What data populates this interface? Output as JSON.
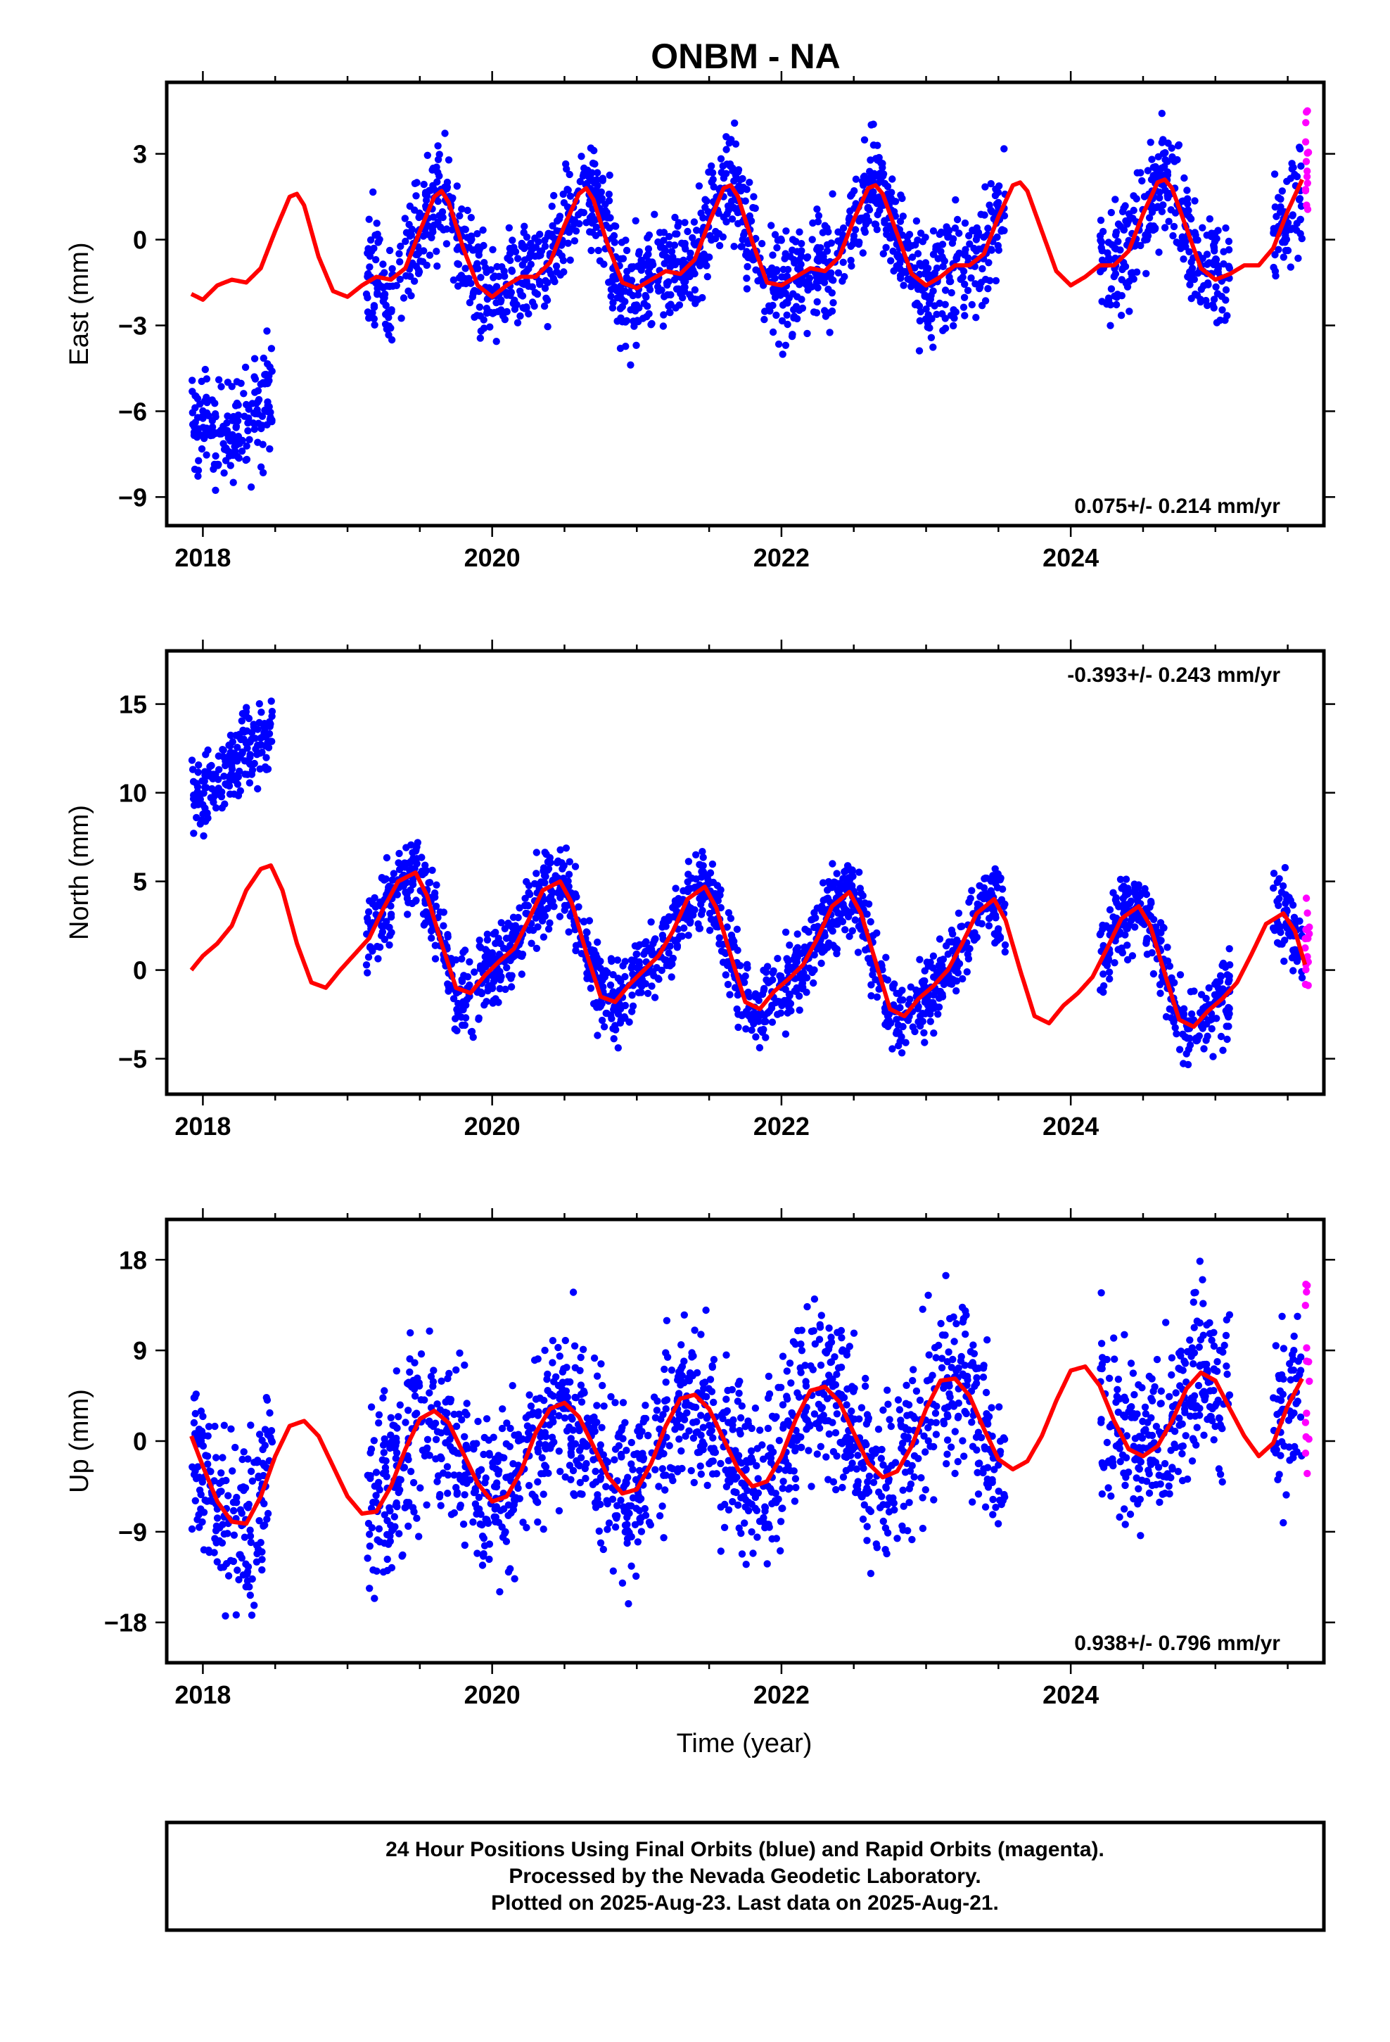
{
  "title": "ONBM - NA",
  "xlabel": "Time (year)",
  "footer": {
    "line1": "24 Hour Positions Using Final Orbits (blue) and Rapid Orbits (magenta).",
    "line2": "Processed by the Nevada Geodetic Laboratory.",
    "line3": "Plotted on 2025-Aug-23. Last data on 2025-Aug-21."
  },
  "colors": {
    "final": "#0000ff",
    "rapid": "#ff00ff",
    "model": "#ff0000",
    "frame": "#000000"
  },
  "chart_data": [
    {
      "type": "scatter",
      "ylabel": "East (mm)",
      "rate": "0.075+/- 0.214 mm/yr",
      "rate_position": "bottom-right",
      "xlim": [
        2017.75,
        2025.75
      ],
      "ylim": [
        -10,
        5.5
      ],
      "xticks": [
        2018,
        2020,
        2022,
        2024
      ],
      "yticks": [
        -9,
        -6,
        -3,
        0,
        3
      ],
      "ytick_labels": [
        "−9",
        "−6",
        "−3",
        "0",
        "3"
      ],
      "model": {
        "x": [
          2017.92,
          2018.0,
          2018.1,
          2018.2,
          2018.3,
          2018.4,
          2018.5,
          2018.6,
          2018.65,
          2018.7,
          2018.8,
          2018.9,
          2019.0,
          2019.1,
          2019.2,
          2019.3,
          2019.4,
          2019.5,
          2019.6,
          2019.65,
          2019.7,
          2019.8,
          2019.9,
          2020.0,
          2020.1,
          2020.2,
          2020.3,
          2020.4,
          2020.5,
          2020.6,
          2020.65,
          2020.7,
          2020.8,
          2020.9,
          2021.0,
          2021.1,
          2021.2,
          2021.3,
          2021.4,
          2021.5,
          2021.6,
          2021.65,
          2021.7,
          2021.8,
          2021.9,
          2022.0,
          2022.1,
          2022.2,
          2022.3,
          2022.4,
          2022.5,
          2022.6,
          2022.65,
          2022.7,
          2022.8,
          2022.9,
          2023.0,
          2023.1,
          2023.2,
          2023.3,
          2023.4,
          2023.5,
          2023.6,
          2023.65,
          2023.7,
          2023.8,
          2023.9,
          2024.0,
          2024.1,
          2024.2,
          2024.3,
          2024.4,
          2024.5,
          2024.6,
          2024.65,
          2024.7,
          2024.8,
          2024.9,
          2025.0,
          2025.1,
          2025.2,
          2025.3,
          2025.4,
          2025.5,
          2025.6
        ],
        "y": [
          -1.9,
          -2.1,
          -1.6,
          -1.4,
          -1.5,
          -1.0,
          0.3,
          1.5,
          1.6,
          1.2,
          -0.6,
          -1.8,
          -2.0,
          -1.6,
          -1.3,
          -1.4,
          -1.0,
          0.3,
          1.5,
          1.7,
          1.3,
          -0.3,
          -1.6,
          -2.0,
          -1.6,
          -1.3,
          -1.3,
          -0.8,
          0.5,
          1.6,
          1.8,
          1.4,
          -0.2,
          -1.5,
          -1.7,
          -1.4,
          -1.1,
          -1.2,
          -0.7,
          0.6,
          1.8,
          1.9,
          1.5,
          -0.1,
          -1.5,
          -1.6,
          -1.3,
          -1.0,
          -1.1,
          -0.6,
          0.7,
          1.8,
          1.9,
          1.6,
          0.2,
          -1.2,
          -1.6,
          -1.3,
          -0.9,
          -0.9,
          -0.5,
          0.8,
          1.9,
          2.0,
          1.7,
          0.3,
          -1.1,
          -1.6,
          -1.3,
          -0.9,
          -0.9,
          -0.4,
          0.9,
          2.0,
          2.1,
          1.8,
          0.4,
          -1.0,
          -1.4,
          -1.2,
          -0.9,
          -0.9,
          -0.3,
          1.0,
          2.1
        ]
      }
    },
    {
      "type": "scatter",
      "ylabel": "North (mm)",
      "rate": "-0.393+/- 0.243 mm/yr",
      "rate_position": "top-right",
      "xlim": [
        2017.75,
        2025.75
      ],
      "ylim": [
        -7,
        18
      ],
      "xticks": [
        2018,
        2020,
        2022,
        2024
      ],
      "yticks": [
        -5,
        0,
        5,
        10,
        15
      ],
      "ytick_labels": [
        "−5",
        "0",
        "5",
        "10",
        "15"
      ],
      "model": {
        "x": [
          2017.92,
          2018.0,
          2018.1,
          2018.2,
          2018.3,
          2018.4,
          2018.47,
          2018.55,
          2018.65,
          2018.75,
          2018.85,
          2018.95,
          2019.05,
          2019.15,
          2019.25,
          2019.35,
          2019.47,
          2019.55,
          2019.65,
          2019.75,
          2019.85,
          2019.95,
          2020.05,
          2020.15,
          2020.25,
          2020.35,
          2020.47,
          2020.55,
          2020.65,
          2020.75,
          2020.85,
          2020.95,
          2021.05,
          2021.15,
          2021.25,
          2021.35,
          2021.47,
          2021.55,
          2021.65,
          2021.75,
          2021.85,
          2021.95,
          2022.05,
          2022.15,
          2022.25,
          2022.35,
          2022.47,
          2022.55,
          2022.65,
          2022.75,
          2022.85,
          2022.95,
          2023.05,
          2023.15,
          2023.25,
          2023.35,
          2023.47,
          2023.55,
          2023.65,
          2023.75,
          2023.85,
          2023.95,
          2024.05,
          2024.15,
          2024.25,
          2024.35,
          2024.47,
          2024.55,
          2024.65,
          2024.75,
          2024.85,
          2024.95,
          2025.05,
          2025.15,
          2025.25,
          2025.35,
          2025.47,
          2025.55,
          2025.62
        ],
        "y": [
          0.0,
          0.8,
          1.5,
          2.5,
          4.5,
          5.7,
          5.9,
          4.5,
          1.5,
          -0.7,
          -1.0,
          0.0,
          0.9,
          1.8,
          3.5,
          5.0,
          5.5,
          4.2,
          1.5,
          -1.0,
          -1.3,
          -0.3,
          0.5,
          1.2,
          2.8,
          4.5,
          5.0,
          3.8,
          1.0,
          -1.5,
          -1.8,
          -0.8,
          0.0,
          0.8,
          2.2,
          4.0,
          4.7,
          3.5,
          0.8,
          -1.8,
          -2.2,
          -1.2,
          -0.5,
          0.3,
          1.8,
          3.6,
          4.4,
          3.2,
          0.5,
          -2.2,
          -2.6,
          -1.6,
          -0.9,
          0.0,
          1.5,
          3.2,
          4.0,
          2.8,
          0.0,
          -2.6,
          -3.0,
          -2.0,
          -1.3,
          -0.4,
          1.2,
          2.9,
          3.6,
          2.5,
          -0.2,
          -2.8,
          -3.2,
          -2.3,
          -1.6,
          -0.7,
          0.9,
          2.6,
          3.2,
          2.2,
          0.3
        ]
      }
    },
    {
      "type": "scatter",
      "ylabel": "Up (mm)",
      "rate": "0.938+/- 0.796 mm/yr",
      "rate_position": "bottom-right",
      "xlim": [
        2017.75,
        2025.75
      ],
      "ylim": [
        -22,
        22
      ],
      "xticks": [
        2018,
        2020,
        2022,
        2024
      ],
      "yticks": [
        -18,
        -9,
        0,
        9,
        18
      ],
      "ytick_labels": [
        "−18",
        "−9",
        "0",
        "9",
        "18"
      ],
      "model": {
        "x": [
          2017.92,
          2018.0,
          2018.1,
          2018.2,
          2018.3,
          2018.4,
          2018.5,
          2018.6,
          2018.7,
          2018.8,
          2018.9,
          2019.0,
          2019.1,
          2019.2,
          2019.3,
          2019.4,
          2019.5,
          2019.6,
          2019.7,
          2019.8,
          2019.9,
          2020.0,
          2020.1,
          2020.2,
          2020.3,
          2020.4,
          2020.5,
          2020.6,
          2020.7,
          2020.8,
          2020.9,
          2021.0,
          2021.1,
          2021.2,
          2021.3,
          2021.4,
          2021.5,
          2021.6,
          2021.7,
          2021.8,
          2021.9,
          2022.0,
          2022.1,
          2022.2,
          2022.3,
          2022.4,
          2022.5,
          2022.6,
          2022.7,
          2022.8,
          2022.9,
          2023.0,
          2023.1,
          2023.2,
          2023.3,
          2023.4,
          2023.5,
          2023.6,
          2023.7,
          2023.8,
          2023.9,
          2024.0,
          2024.1,
          2024.2,
          2024.3,
          2024.4,
          2024.5,
          2024.6,
          2024.7,
          2024.8,
          2024.9,
          2025.0,
          2025.1,
          2025.2,
          2025.3,
          2025.4,
          2025.5,
          2025.6
        ],
        "y": [
          0.5,
          -2.5,
          -6.0,
          -8.0,
          -8.2,
          -5.5,
          -1.5,
          1.5,
          2.0,
          0.5,
          -2.5,
          -5.5,
          -7.2,
          -7.0,
          -4.5,
          -0.8,
          2.2,
          3.0,
          1.8,
          -1.2,
          -4.2,
          -6.0,
          -5.5,
          -3.0,
          0.8,
          3.2,
          3.8,
          2.4,
          -0.5,
          -3.5,
          -5.2,
          -4.8,
          -2.2,
          1.5,
          4.2,
          4.6,
          3.2,
          0.2,
          -2.8,
          -4.5,
          -4.0,
          -1.5,
          2.2,
          5.0,
          5.4,
          3.9,
          0.8,
          -2.2,
          -3.6,
          -3.0,
          -0.5,
          3.2,
          6.0,
          6.2,
          4.5,
          1.2,
          -1.8,
          -2.8,
          -2.0,
          0.5,
          4.0,
          7.0,
          7.4,
          5.5,
          2.0,
          -0.8,
          -1.5,
          -0.5,
          2.0,
          5.2,
          6.8,
          6.0,
          3.2,
          0.5,
          -1.5,
          -0.2,
          3.5,
          6.2
        ]
      }
    }
  ]
}
